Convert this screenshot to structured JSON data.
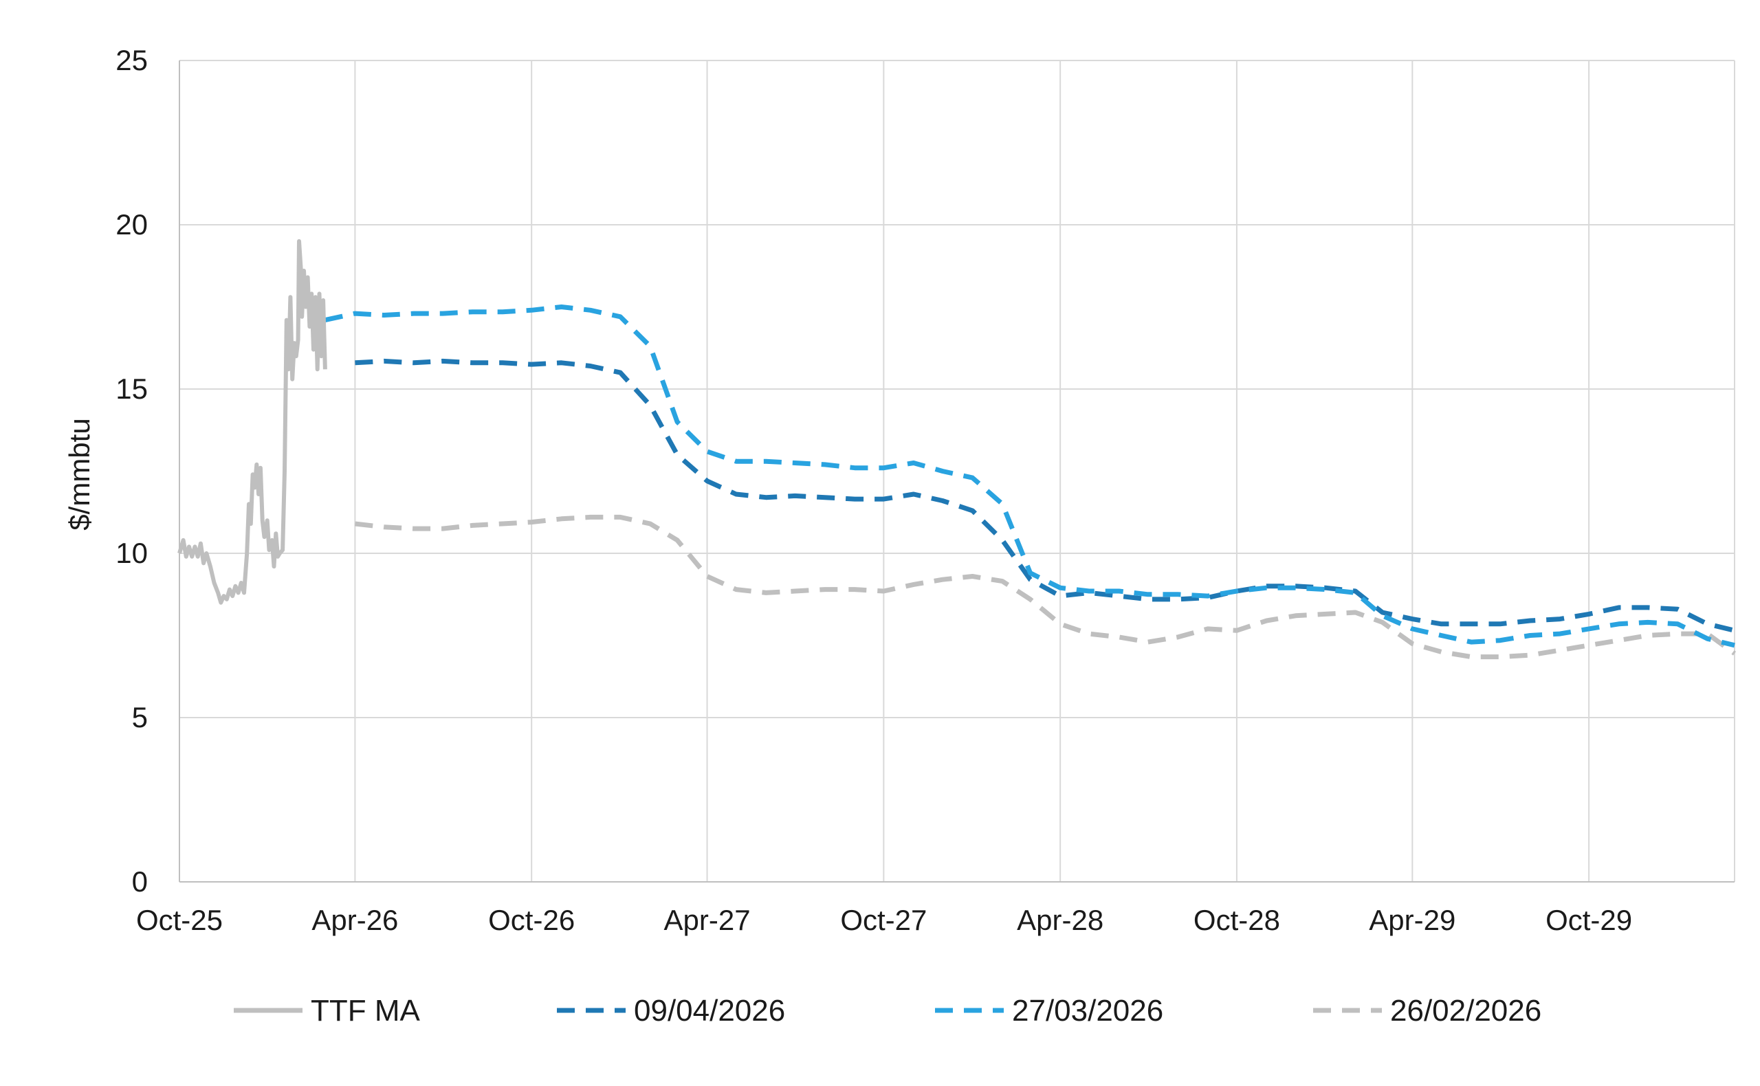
{
  "chart_data": {
    "type": "line",
    "ylabel": "$/mmbtu",
    "xlabel": "",
    "title": "",
    "ylim": [
      0,
      25
    ],
    "y_ticks": [
      0,
      5,
      10,
      15,
      20,
      25
    ],
    "x_ticks": [
      "Oct-25",
      "Apr-26",
      "Oct-26",
      "Apr-27",
      "Oct-27",
      "Apr-28",
      "Oct-28",
      "Apr-29",
      "Oct-29"
    ],
    "x_range": [
      "2025-10-01",
      "2030-03-01"
    ],
    "grid": "on",
    "legend_position": "bottom",
    "series": [
      {
        "name": "TTF MA",
        "color": "#bfbfbf",
        "style": "solid",
        "points": [
          [
            "2025-10-01",
            10.0
          ],
          [
            "2025-10-05",
            10.4
          ],
          [
            "2025-10-08",
            9.9
          ],
          [
            "2025-10-11",
            10.2
          ],
          [
            "2025-10-14",
            9.9
          ],
          [
            "2025-10-17",
            10.2
          ],
          [
            "2025-10-20",
            9.9
          ],
          [
            "2025-10-23",
            10.3
          ],
          [
            "2025-10-26",
            9.7
          ],
          [
            "2025-10-29",
            10.0
          ],
          [
            "2025-11-02",
            9.6
          ],
          [
            "2025-11-06",
            9.1
          ],
          [
            "2025-11-10",
            8.8
          ],
          [
            "2025-11-13",
            8.5
          ],
          [
            "2025-11-16",
            8.7
          ],
          [
            "2025-11-19",
            8.6
          ],
          [
            "2025-11-22",
            8.9
          ],
          [
            "2025-11-25",
            8.7
          ],
          [
            "2025-11-28",
            9.0
          ],
          [
            "2025-12-01",
            8.8
          ],
          [
            "2025-12-04",
            9.1
          ],
          [
            "2025-12-07",
            8.8
          ],
          [
            "2025-12-10",
            10.0
          ],
          [
            "2025-12-12",
            11.5
          ],
          [
            "2025-12-14",
            10.9
          ],
          [
            "2025-12-16",
            12.4
          ],
          [
            "2025-12-18",
            12.0
          ],
          [
            "2025-12-20",
            12.7
          ],
          [
            "2025-12-22",
            11.8
          ],
          [
            "2025-12-24",
            12.6
          ],
          [
            "2025-12-26",
            11.0
          ],
          [
            "2025-12-28",
            10.5
          ],
          [
            "2025-12-31",
            11.0
          ],
          [
            "2026-01-02",
            10.1
          ],
          [
            "2026-01-05",
            10.4
          ],
          [
            "2026-01-07",
            9.6
          ],
          [
            "2026-01-09",
            10.6
          ],
          [
            "2026-01-11",
            9.9
          ],
          [
            "2026-01-13",
            10.0
          ],
          [
            "2026-01-16",
            10.1
          ],
          [
            "2026-01-18",
            12.5
          ],
          [
            "2026-01-20",
            17.1
          ],
          [
            "2026-01-22",
            15.6
          ],
          [
            "2026-01-24",
            17.8
          ],
          [
            "2026-01-26",
            15.3
          ],
          [
            "2026-01-28",
            16.4
          ],
          [
            "2026-01-30",
            16.0
          ],
          [
            "2026-02-01",
            16.5
          ],
          [
            "2026-02-02",
            19.5
          ],
          [
            "2026-02-04",
            18.6
          ],
          [
            "2026-02-05",
            17.2
          ],
          [
            "2026-02-07",
            18.6
          ],
          [
            "2026-02-09",
            17.5
          ],
          [
            "2026-02-11",
            18.4
          ],
          [
            "2026-02-13",
            16.9
          ],
          [
            "2026-02-15",
            17.9
          ],
          [
            "2026-02-17",
            16.2
          ],
          [
            "2026-02-19",
            17.8
          ],
          [
            "2026-02-21",
            15.6
          ],
          [
            "2026-02-23",
            17.9
          ],
          [
            "2026-02-25",
            16.0
          ],
          [
            "2026-02-27",
            17.7
          ],
          [
            "2026-03-01",
            15.6
          ]
        ]
      },
      {
        "name": "09/04/2026",
        "color": "#1f78b4",
        "style": "dashed",
        "points": [
          [
            "2026-04-01",
            15.8
          ],
          [
            "2026-05-01",
            15.85
          ],
          [
            "2026-06-01",
            15.8
          ],
          [
            "2026-07-01",
            15.85
          ],
          [
            "2026-08-01",
            15.8
          ],
          [
            "2026-09-01",
            15.8
          ],
          [
            "2026-10-01",
            15.75
          ],
          [
            "2026-11-01",
            15.8
          ],
          [
            "2026-12-01",
            15.7
          ],
          [
            "2027-01-01",
            15.5
          ],
          [
            "2027-02-01",
            14.5
          ],
          [
            "2027-03-01",
            13.0
          ],
          [
            "2027-04-01",
            12.2
          ],
          [
            "2027-05-01",
            11.8
          ],
          [
            "2027-06-01",
            11.7
          ],
          [
            "2027-07-01",
            11.75
          ],
          [
            "2027-08-01",
            11.7
          ],
          [
            "2027-09-01",
            11.65
          ],
          [
            "2027-10-01",
            11.65
          ],
          [
            "2027-11-01",
            11.8
          ],
          [
            "2027-12-01",
            11.6
          ],
          [
            "2028-01-01",
            11.3
          ],
          [
            "2028-02-01",
            10.4
          ],
          [
            "2028-03-01",
            9.2
          ],
          [
            "2028-04-01",
            8.7
          ],
          [
            "2028-05-01",
            8.8
          ],
          [
            "2028-06-01",
            8.7
          ],
          [
            "2028-07-01",
            8.6
          ],
          [
            "2028-08-01",
            8.6
          ],
          [
            "2028-09-01",
            8.65
          ],
          [
            "2028-10-01",
            8.85
          ],
          [
            "2028-11-01",
            9.0
          ],
          [
            "2028-12-01",
            9.0
          ],
          [
            "2029-01-01",
            8.95
          ],
          [
            "2029-02-01",
            8.85
          ],
          [
            "2029-03-01",
            8.2
          ],
          [
            "2029-04-01",
            8.0
          ],
          [
            "2029-05-01",
            7.85
          ],
          [
            "2029-06-01",
            7.85
          ],
          [
            "2029-07-01",
            7.85
          ],
          [
            "2029-08-01",
            7.95
          ],
          [
            "2029-09-01",
            8.0
          ],
          [
            "2029-10-01",
            8.15
          ],
          [
            "2029-11-01",
            8.35
          ],
          [
            "2029-12-01",
            8.35
          ],
          [
            "2030-01-01",
            8.3
          ],
          [
            "2030-02-01",
            7.85
          ],
          [
            "2030-03-01",
            7.65
          ]
        ]
      },
      {
        "name": "27/03/2026",
        "color": "#29a3e0",
        "style": "dashed",
        "points": [
          [
            "2026-03-01",
            17.1
          ],
          [
            "2026-04-01",
            17.3
          ],
          [
            "2026-05-01",
            17.25
          ],
          [
            "2026-06-01",
            17.3
          ],
          [
            "2026-07-01",
            17.3
          ],
          [
            "2026-08-01",
            17.35
          ],
          [
            "2026-09-01",
            17.35
          ],
          [
            "2026-10-01",
            17.4
          ],
          [
            "2026-11-01",
            17.5
          ],
          [
            "2026-12-01",
            17.4
          ],
          [
            "2027-01-01",
            17.2
          ],
          [
            "2027-02-01",
            16.3
          ],
          [
            "2027-03-01",
            14.0
          ],
          [
            "2027-04-01",
            13.1
          ],
          [
            "2027-05-01",
            12.8
          ],
          [
            "2027-06-01",
            12.8
          ],
          [
            "2027-07-01",
            12.75
          ],
          [
            "2027-08-01",
            12.7
          ],
          [
            "2027-09-01",
            12.6
          ],
          [
            "2027-10-01",
            12.6
          ],
          [
            "2027-11-01",
            12.75
          ],
          [
            "2027-12-01",
            12.5
          ],
          [
            "2028-01-01",
            12.3
          ],
          [
            "2028-02-01",
            11.5
          ],
          [
            "2028-03-01",
            9.4
          ],
          [
            "2028-04-01",
            8.95
          ],
          [
            "2028-05-01",
            8.85
          ],
          [
            "2028-06-01",
            8.85
          ],
          [
            "2028-07-01",
            8.75
          ],
          [
            "2028-08-01",
            8.75
          ],
          [
            "2028-09-01",
            8.7
          ],
          [
            "2028-10-01",
            8.85
          ],
          [
            "2028-11-01",
            8.95
          ],
          [
            "2028-12-01",
            8.95
          ],
          [
            "2029-01-01",
            8.9
          ],
          [
            "2029-02-01",
            8.8
          ],
          [
            "2029-03-01",
            8.1
          ],
          [
            "2029-04-01",
            7.7
          ],
          [
            "2029-05-01",
            7.5
          ],
          [
            "2029-06-01",
            7.3
          ],
          [
            "2029-07-01",
            7.35
          ],
          [
            "2029-08-01",
            7.5
          ],
          [
            "2029-09-01",
            7.55
          ],
          [
            "2029-10-01",
            7.7
          ],
          [
            "2029-11-01",
            7.85
          ],
          [
            "2029-12-01",
            7.9
          ],
          [
            "2030-01-01",
            7.85
          ],
          [
            "2030-02-01",
            7.4
          ],
          [
            "2030-03-01",
            7.2
          ]
        ]
      },
      {
        "name": "26/02/2026",
        "color": "#bfbfbf",
        "style": "dashed",
        "points": [
          [
            "2026-04-01",
            10.9
          ],
          [
            "2026-05-01",
            10.8
          ],
          [
            "2026-06-01",
            10.75
          ],
          [
            "2026-07-01",
            10.75
          ],
          [
            "2026-08-01",
            10.85
          ],
          [
            "2026-09-01",
            10.9
          ],
          [
            "2026-10-01",
            10.95
          ],
          [
            "2026-11-01",
            11.05
          ],
          [
            "2026-12-01",
            11.1
          ],
          [
            "2027-01-01",
            11.1
          ],
          [
            "2027-02-01",
            10.9
          ],
          [
            "2027-03-01",
            10.4
          ],
          [
            "2027-04-01",
            9.3
          ],
          [
            "2027-05-01",
            8.9
          ],
          [
            "2027-06-01",
            8.8
          ],
          [
            "2027-07-01",
            8.85
          ],
          [
            "2027-08-01",
            8.9
          ],
          [
            "2027-09-01",
            8.9
          ],
          [
            "2027-10-01",
            8.85
          ],
          [
            "2027-11-01",
            9.05
          ],
          [
            "2027-12-01",
            9.2
          ],
          [
            "2028-01-01",
            9.3
          ],
          [
            "2028-02-01",
            9.15
          ],
          [
            "2028-03-01",
            8.6
          ],
          [
            "2028-04-01",
            7.85
          ],
          [
            "2028-05-01",
            7.55
          ],
          [
            "2028-06-01",
            7.45
          ],
          [
            "2028-07-01",
            7.3
          ],
          [
            "2028-08-01",
            7.45
          ],
          [
            "2028-09-01",
            7.7
          ],
          [
            "2028-10-01",
            7.65
          ],
          [
            "2028-11-01",
            7.95
          ],
          [
            "2028-12-01",
            8.1
          ],
          [
            "2029-01-01",
            8.15
          ],
          [
            "2029-02-01",
            8.2
          ],
          [
            "2029-03-01",
            7.9
          ],
          [
            "2029-04-01",
            7.25
          ],
          [
            "2029-05-01",
            7.0
          ],
          [
            "2029-06-01",
            6.85
          ],
          [
            "2029-07-01",
            6.85
          ],
          [
            "2029-08-01",
            6.9
          ],
          [
            "2029-09-01",
            7.05
          ],
          [
            "2029-10-01",
            7.2
          ],
          [
            "2029-11-01",
            7.35
          ],
          [
            "2029-12-01",
            7.5
          ],
          [
            "2030-01-01",
            7.55
          ],
          [
            "2030-02-01",
            7.55
          ],
          [
            "2030-03-01",
            6.95
          ]
        ]
      }
    ]
  }
}
